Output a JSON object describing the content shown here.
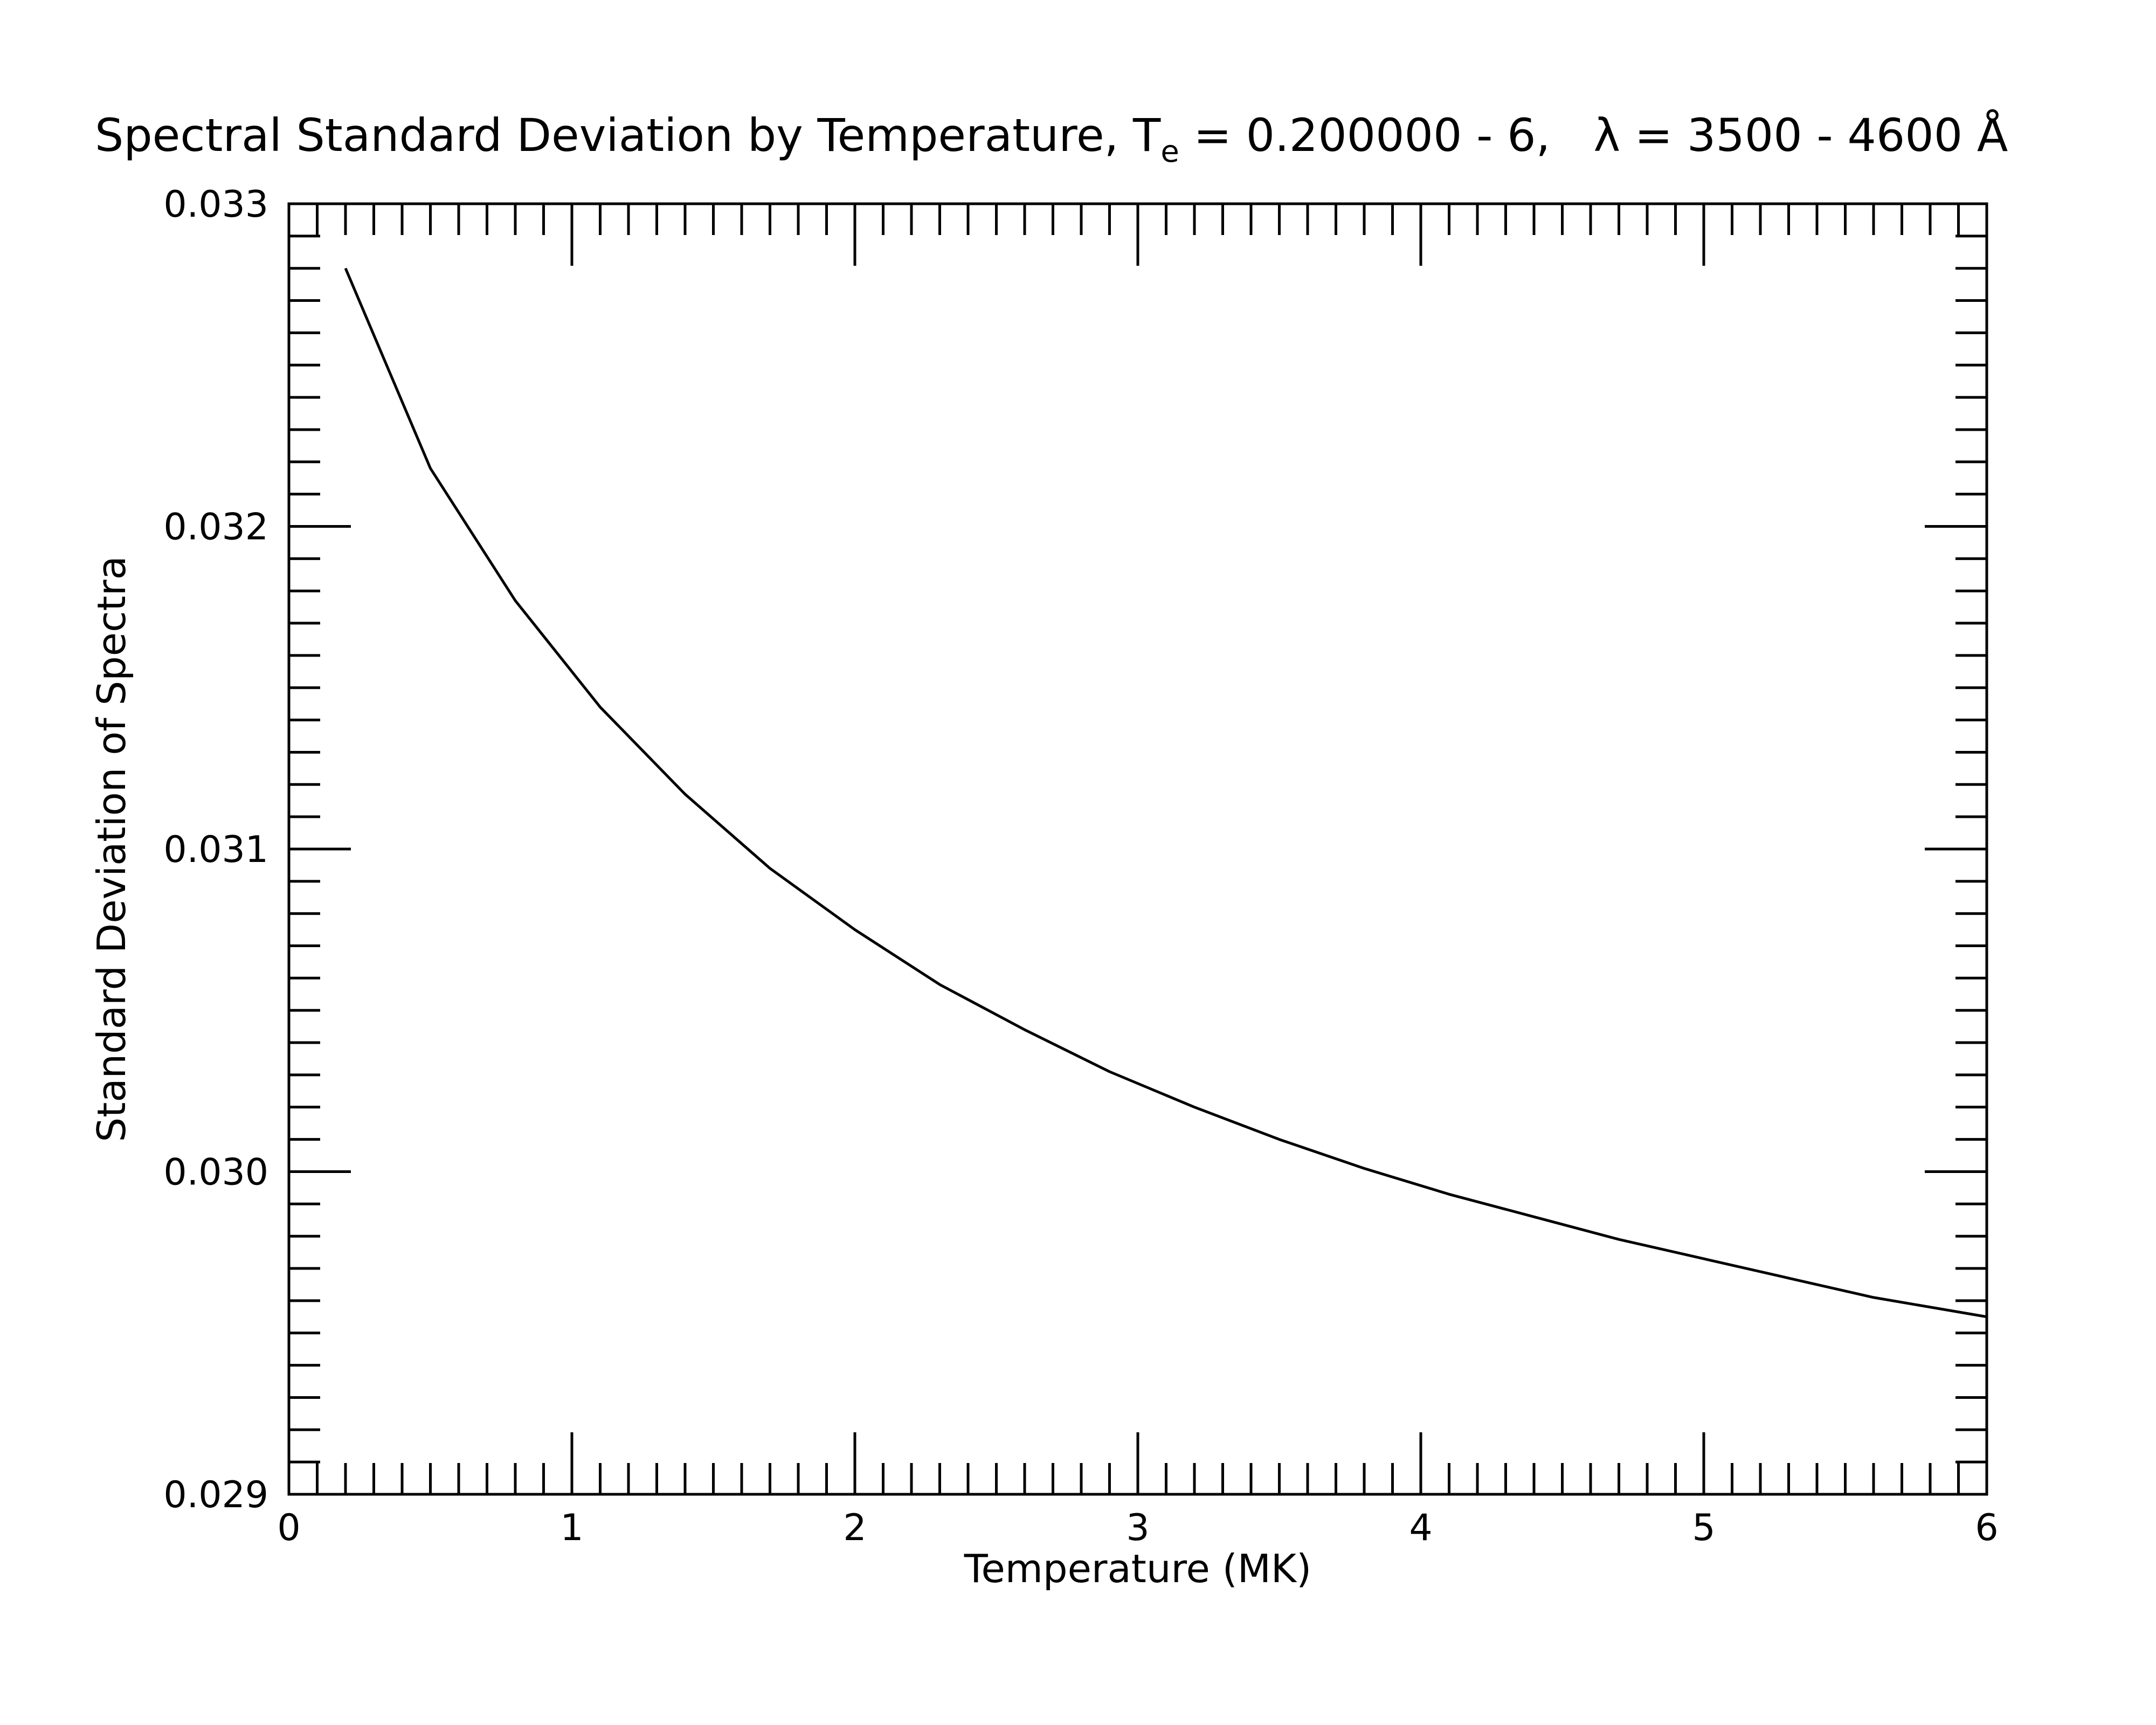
{
  "chart_data": {
    "type": "line",
    "title_parts": {
      "prefix": "Spectral Standard Deviation by Temperature, T",
      "subscript": "e",
      "middle": " = 0.200000 - 6,   ",
      "suffix": "λ = 3500 - 4600 Å"
    },
    "xlabel": "Temperature (MK)",
    "ylabel": "Standard Deviation of Spectra",
    "xlim": [
      0,
      6
    ],
    "ylim": [
      0.029,
      0.033
    ],
    "x_ticks": [
      0,
      1,
      2,
      3,
      4,
      5,
      6
    ],
    "x_tick_labels": [
      "0",
      "1",
      "2",
      "3",
      "4",
      "5",
      "6"
    ],
    "y_ticks": [
      0.029,
      0.03,
      0.031,
      0.032,
      0.033
    ],
    "y_tick_labels": [
      "0.029",
      "0.030",
      "0.031",
      "0.032",
      "0.033"
    ],
    "x_minor_step": 0.1,
    "y_minor_step": 0.0001,
    "grid": false,
    "line_color": "#000000",
    "series": [
      {
        "x": [
          0.2,
          0.5,
          0.8,
          1.1,
          1.4,
          1.7,
          2.0,
          2.3,
          2.6,
          2.9,
          3.2,
          3.5,
          3.8,
          4.1,
          4.4,
          4.7,
          5.0,
          5.3,
          5.6,
          6.0
        ],
        "y": [
          0.0328,
          0.03218,
          0.03177,
          0.03144,
          0.03117,
          0.03094,
          0.03075,
          0.03058,
          0.03044,
          0.03031,
          0.0302,
          0.0301,
          0.03001,
          0.02993,
          0.02986,
          0.02979,
          0.02973,
          0.02967,
          0.02961,
          0.02955
        ]
      }
    ]
  }
}
